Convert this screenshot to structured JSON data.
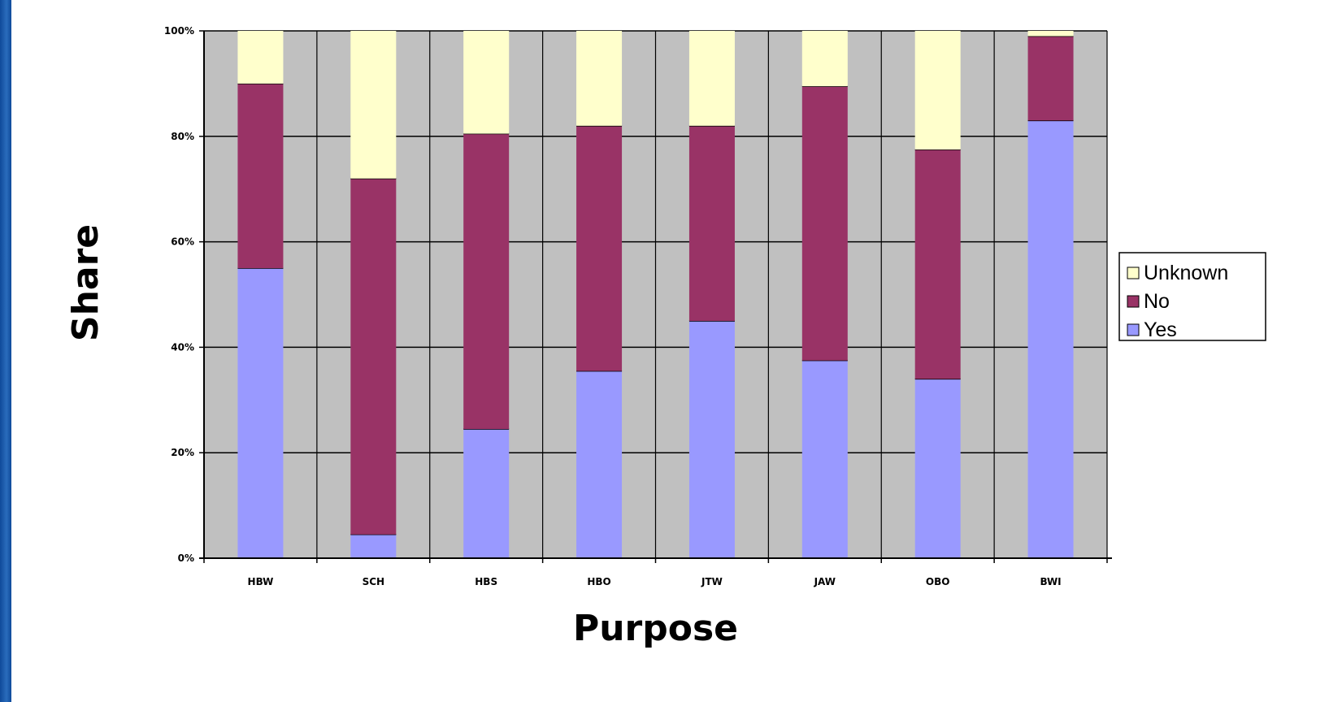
{
  "chart_data": {
    "type": "bar",
    "stacked": true,
    "percent": true,
    "categories": [
      "HBW",
      "SCH",
      "HBS",
      "HBO",
      "JTW",
      "JAW",
      "OBO",
      "BWI"
    ],
    "series": [
      {
        "name": "Yes",
        "color": "#9999ff",
        "values": [
          55,
          4.5,
          24.5,
          35.5,
          45,
          37.5,
          34,
          83
        ]
      },
      {
        "name": "No",
        "color": "#993366",
        "values": [
          35,
          67.5,
          56,
          46.5,
          37,
          52,
          43.5,
          16
        ]
      },
      {
        "name": "Unknown",
        "color": "#ffffcc",
        "values": [
          10,
          28,
          19.5,
          18,
          18,
          10.5,
          22.5,
          1
        ]
      }
    ],
    "legend_order": [
      "Unknown",
      "No",
      "Yes"
    ],
    "legend_position": "right",
    "xlabel": "Purpose",
    "ylabel": "Share",
    "ylim": [
      0,
      100
    ],
    "yticks": [
      "0%",
      "20%",
      "40%",
      "60%",
      "80%",
      "100%"
    ],
    "ytick_values": [
      0,
      20,
      40,
      60,
      80,
      100
    ],
    "grid": true,
    "plot_background": "#c0c0c0"
  }
}
